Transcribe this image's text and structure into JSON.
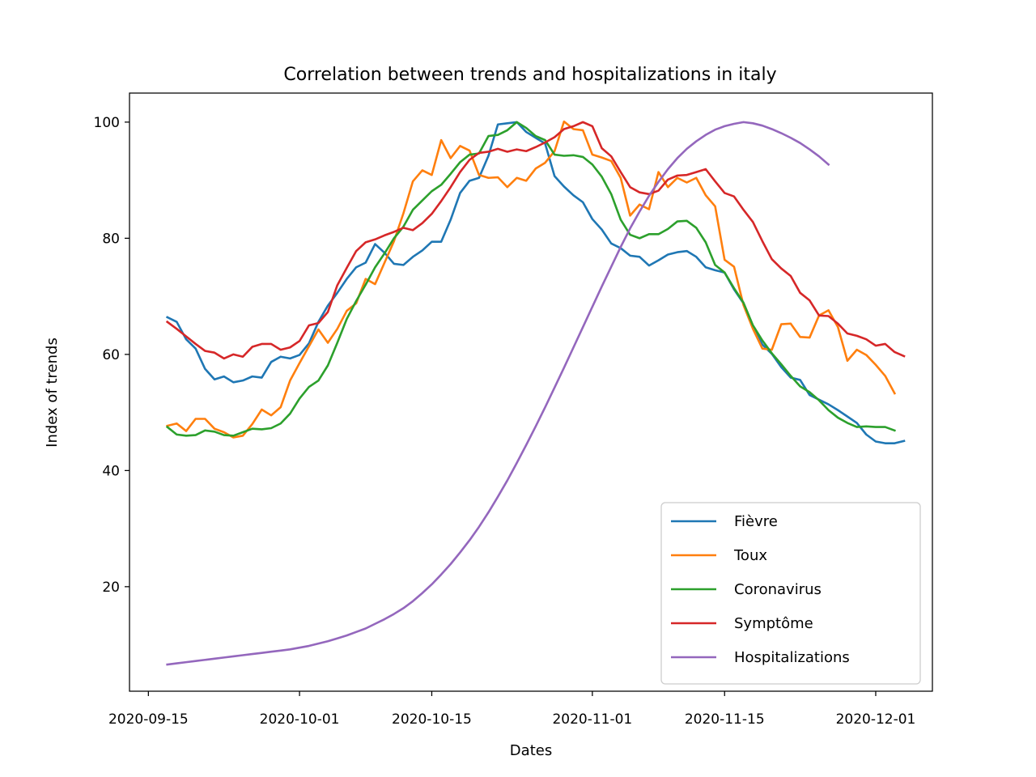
{
  "chart_data": {
    "type": "line",
    "title": "Correlation between trends and hospitalizations in italy",
    "xlabel": "Dates",
    "ylabel": "Index of trends",
    "x_start": "2020-09-17",
    "x_end": "2020-12-03",
    "x_ticks": [
      "2020-09-15",
      "2020-10-01",
      "2020-10-15",
      "2020-11-01",
      "2020-11-15",
      "2020-12-01"
    ],
    "y_ticks": [
      20,
      40,
      60,
      80,
      100
    ],
    "xlim": [
      "2020-09-13",
      "2020-12-07"
    ],
    "ylim": [
      2,
      105
    ],
    "legend_position": "lower-right",
    "grid": false,
    "series": [
      {
        "name": "Fièvre",
        "color": "#1f77b4",
        "values": [
          66.4,
          65.6,
          62.6,
          61.0,
          57.5,
          55.7,
          56.2,
          55.2,
          55.5,
          56.2,
          56.0,
          58.7,
          59.6,
          59.3,
          59.9,
          61.9,
          65.6,
          68.4,
          70.6,
          73.0,
          75.0,
          75.8,
          79.0,
          77.5,
          75.6,
          75.4,
          76.8,
          77.9,
          79.4,
          79.4,
          83.2,
          87.8,
          89.9,
          90.4,
          94.2,
          99.6,
          99.8,
          100.0,
          98.3,
          97.3,
          96.3,
          90.7,
          88.9,
          87.4,
          86.2,
          83.3,
          81.5,
          79.1,
          78.3,
          77.0,
          76.8,
          75.3,
          76.2,
          77.2,
          77.6,
          77.8,
          76.8,
          75.0,
          74.5,
          74.1,
          71.2,
          68.8,
          64.8,
          61.7,
          60.1,
          57.8,
          56.0,
          55.6,
          53.0,
          52.2,
          51.4,
          50.4,
          49.3,
          48.2,
          46.2,
          45.0,
          44.7,
          44.7,
          45.1
        ]
      },
      {
        "name": "Toux",
        "color": "#ff7f0e",
        "values": [
          47.7,
          48.1,
          46.8,
          48.9,
          48.9,
          47.2,
          46.6,
          45.7,
          46.0,
          48.0,
          50.5,
          49.5,
          50.9,
          55.5,
          58.5,
          61.4,
          64.3,
          62.0,
          64.4,
          67.5,
          68.8,
          73.0,
          72.1,
          75.8,
          79.5,
          84.3,
          89.8,
          91.7,
          90.9,
          96.9,
          93.8,
          95.9,
          95.1,
          90.9,
          90.4,
          90.5,
          88.8,
          90.4,
          89.9,
          92.0,
          93.0,
          95.0,
          100.1,
          98.8,
          98.6,
          94.4,
          93.9,
          93.3,
          90.4,
          83.9,
          85.8,
          85.0,
          91.4,
          88.8,
          90.4,
          89.6,
          90.4,
          87.4,
          85.5,
          76.3,
          75.1,
          68.5,
          64.4,
          61.0,
          60.8,
          65.2,
          65.3,
          63.0,
          62.9,
          66.7,
          67.6,
          64.7,
          58.9,
          60.8,
          59.9,
          58.2,
          56.3,
          53.3
        ]
      },
      {
        "name": "Coronavirus",
        "color": "#2ca02c",
        "values": [
          47.5,
          46.2,
          46.0,
          46.1,
          46.9,
          46.7,
          46.1,
          46.0,
          46.6,
          47.2,
          47.1,
          47.3,
          48.1,
          49.8,
          52.4,
          54.4,
          55.5,
          58.1,
          62.0,
          66.1,
          69.2,
          72.0,
          75.0,
          77.4,
          80.0,
          82.0,
          84.9,
          86.5,
          88.1,
          89.2,
          91.1,
          93.1,
          94.4,
          94.6,
          97.6,
          97.8,
          98.6,
          100.0,
          99.0,
          97.6,
          96.9,
          94.4,
          94.2,
          94.3,
          94.0,
          92.7,
          90.6,
          87.6,
          83.2,
          80.6,
          80.0,
          80.7,
          80.7,
          81.6,
          82.9,
          83.0,
          81.8,
          79.3,
          75.4,
          74.1,
          71.4,
          68.9,
          65.0,
          62.4,
          60.2,
          58.3,
          56.3,
          54.5,
          53.5,
          52.1,
          50.4,
          49.1,
          48.2,
          47.5,
          47.6,
          47.5,
          47.5,
          46.9
        ]
      },
      {
        "name": "Symptôme",
        "color": "#d62728",
        "values": [
          65.6,
          64.4,
          63.1,
          61.8,
          60.6,
          60.3,
          59.3,
          60.0,
          59.6,
          61.3,
          61.8,
          61.8,
          60.8,
          61.2,
          62.3,
          65.0,
          65.4,
          67.3,
          71.9,
          74.9,
          77.8,
          79.3,
          79.8,
          80.5,
          81.1,
          81.8,
          81.4,
          82.6,
          84.2,
          86.4,
          88.8,
          91.4,
          93.5,
          94.7,
          94.9,
          95.4,
          94.9,
          95.3,
          95.0,
          95.7,
          96.5,
          97.4,
          98.8,
          99.3,
          100.0,
          99.3,
          95.5,
          94.1,
          91.4,
          88.8,
          87.9,
          87.6,
          88.2,
          90.1,
          90.8,
          90.9,
          91.4,
          91.9,
          89.8,
          87.8,
          87.2,
          84.9,
          82.8,
          79.5,
          76.4,
          74.8,
          73.5,
          70.6,
          69.3,
          66.7,
          66.6,
          65.3,
          63.6,
          63.2,
          62.6,
          61.5,
          61.8,
          60.4,
          59.7
        ]
      },
      {
        "name": "Hospitalizations",
        "color": "#9467bd",
        "values": [
          6.6,
          6.8,
          7.0,
          7.2,
          7.4,
          7.6,
          7.8,
          8.0,
          8.2,
          8.4,
          8.6,
          8.8,
          9.0,
          9.2,
          9.5,
          9.8,
          10.2,
          10.6,
          11.1,
          11.6,
          12.2,
          12.8,
          13.6,
          14.4,
          15.3,
          16.3,
          17.5,
          18.9,
          20.4,
          22.1,
          23.9,
          25.9,
          28.0,
          30.3,
          32.8,
          35.5,
          38.3,
          41.3,
          44.4,
          47.6,
          50.9,
          54.3,
          57.7,
          61.2,
          64.7,
          68.2,
          71.7,
          75.1,
          78.5,
          81.7,
          84.6,
          87.3,
          89.7,
          91.9,
          93.8,
          95.4,
          96.7,
          97.8,
          98.7,
          99.3,
          99.7,
          100.0,
          99.8,
          99.4,
          98.8,
          98.1,
          97.3,
          96.4,
          95.3,
          94.1,
          92.7
        ]
      }
    ]
  }
}
